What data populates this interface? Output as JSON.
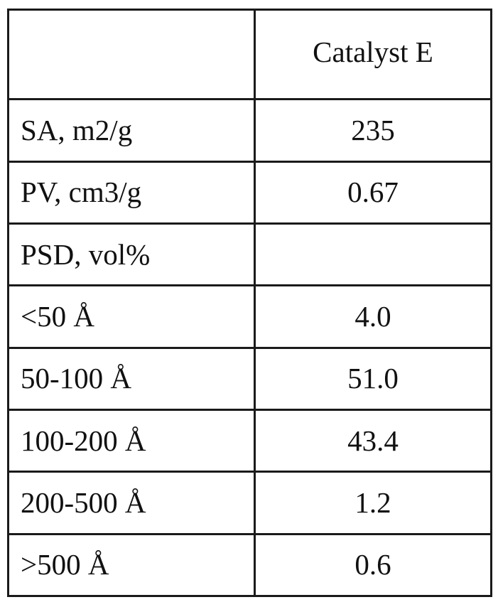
{
  "table": {
    "corner_header": "",
    "column_header": "Catalyst E",
    "rows": [
      {
        "label": "SA, m2/g",
        "value": "235"
      },
      {
        "label": "PV, cm3/g",
        "value": "0.67"
      },
      {
        "label": "PSD, vol%",
        "value": ""
      },
      {
        "label": "<50 Å",
        "value": "4.0"
      },
      {
        "label": "50-100 Å",
        "value": "51.0"
      },
      {
        "label": "100-200 Å",
        "value": "43.4"
      },
      {
        "label": "200-500 Å",
        "value": "1.2"
      },
      {
        "label": ">500 Å",
        "value": "0.6"
      }
    ]
  }
}
